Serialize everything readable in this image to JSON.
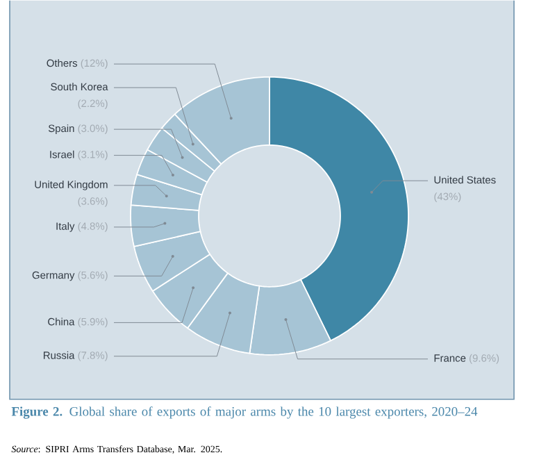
{
  "chart_data": {
    "type": "donut",
    "title": "**Figure 2.** Global share of exports of major arms by the 10 largest exporters, 2020–24",
    "annotations": [
      "*Source*: SIPRI Arms Transfers Database, Mar. 2025."
    ],
    "categories": [
      "United States",
      "France",
      "Russia",
      "China",
      "Germany",
      "Italy",
      "United Kingdom",
      "Israel",
      "Spain",
      "South Korea",
      "Others"
    ],
    "values": [
      43,
      9.6,
      7.8,
      5.9,
      5.6,
      4.8,
      3.6,
      3.1,
      3.0,
      2.2,
      12
    ],
    "value_labels": [
      "(43%)",
      "(9.6%)",
      "(7.8%)",
      "(5.9%)",
      "(5.6%)",
      "(4.8%)",
      "(3.6%)",
      "(3.1%)",
      "(3.0%)",
      "(2.2%)",
      "(12%)"
    ],
    "colors": [
      "#3f87a6",
      "#a6c4d5",
      "#a6c4d5",
      "#a6c4d5",
      "#a6c4d5",
      "#a6c4d5",
      "#a6c4d5",
      "#a6c4d5",
      "#a6c4d5",
      "#a6c4d5",
      "#a6c4d5"
    ]
  }
}
